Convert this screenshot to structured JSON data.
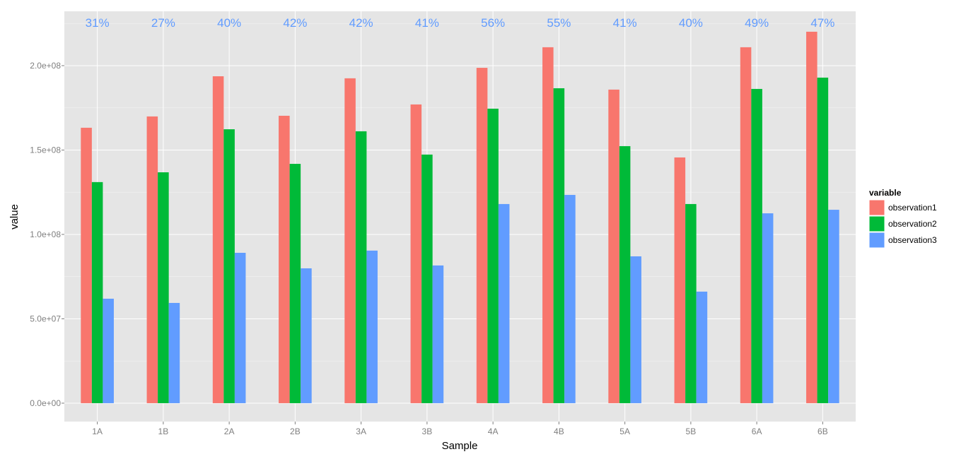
{
  "chart_data": {
    "type": "bar",
    "title": "",
    "xlabel": "Sample",
    "ylabel": "value",
    "ylim": [
      -10900000,
      232200000
    ],
    "yticks": [
      0,
      50000000,
      100000000,
      150000000,
      200000000
    ],
    "ytick_labels": [
      "0.0e+00",
      "5.0e+07",
      "1.0e+08",
      "1.5e+08",
      "2.0e+08"
    ],
    "categories": [
      "1A",
      "1B",
      "2A",
      "2B",
      "3A",
      "3B",
      "4A",
      "4B",
      "5A",
      "5B",
      "6A",
      "6B"
    ],
    "series": [
      {
        "name": "observation1",
        "color": "#F8766D",
        "values": [
          163200000,
          169900000,
          193700000,
          170300000,
          192500000,
          177000000,
          198700000,
          210900000,
          185800000,
          145600000,
          210900000,
          220100000
        ]
      },
      {
        "name": "observation2",
        "color": "#00BA38",
        "values": [
          131000000,
          136800000,
          162300000,
          141800000,
          161100000,
          147300000,
          174500000,
          186600000,
          152300000,
          118000000,
          186200000,
          192900000
        ]
      },
      {
        "name": "observation3",
        "color": "#619CFF",
        "values": [
          61900000,
          59400000,
          89100000,
          79900000,
          90400000,
          81600000,
          118000000,
          123400000,
          87000000,
          66100000,
          112500000,
          114600000
        ]
      }
    ],
    "annotations": [
      "31%",
      "27%",
      "40%",
      "42%",
      "42%",
      "41%",
      "56%",
      "55%",
      "41%",
      "40%",
      "49%",
      "47%"
    ],
    "annotation_color": "#619CFF",
    "legend": {
      "title": "variable",
      "placement": "right"
    },
    "grid": true
  }
}
